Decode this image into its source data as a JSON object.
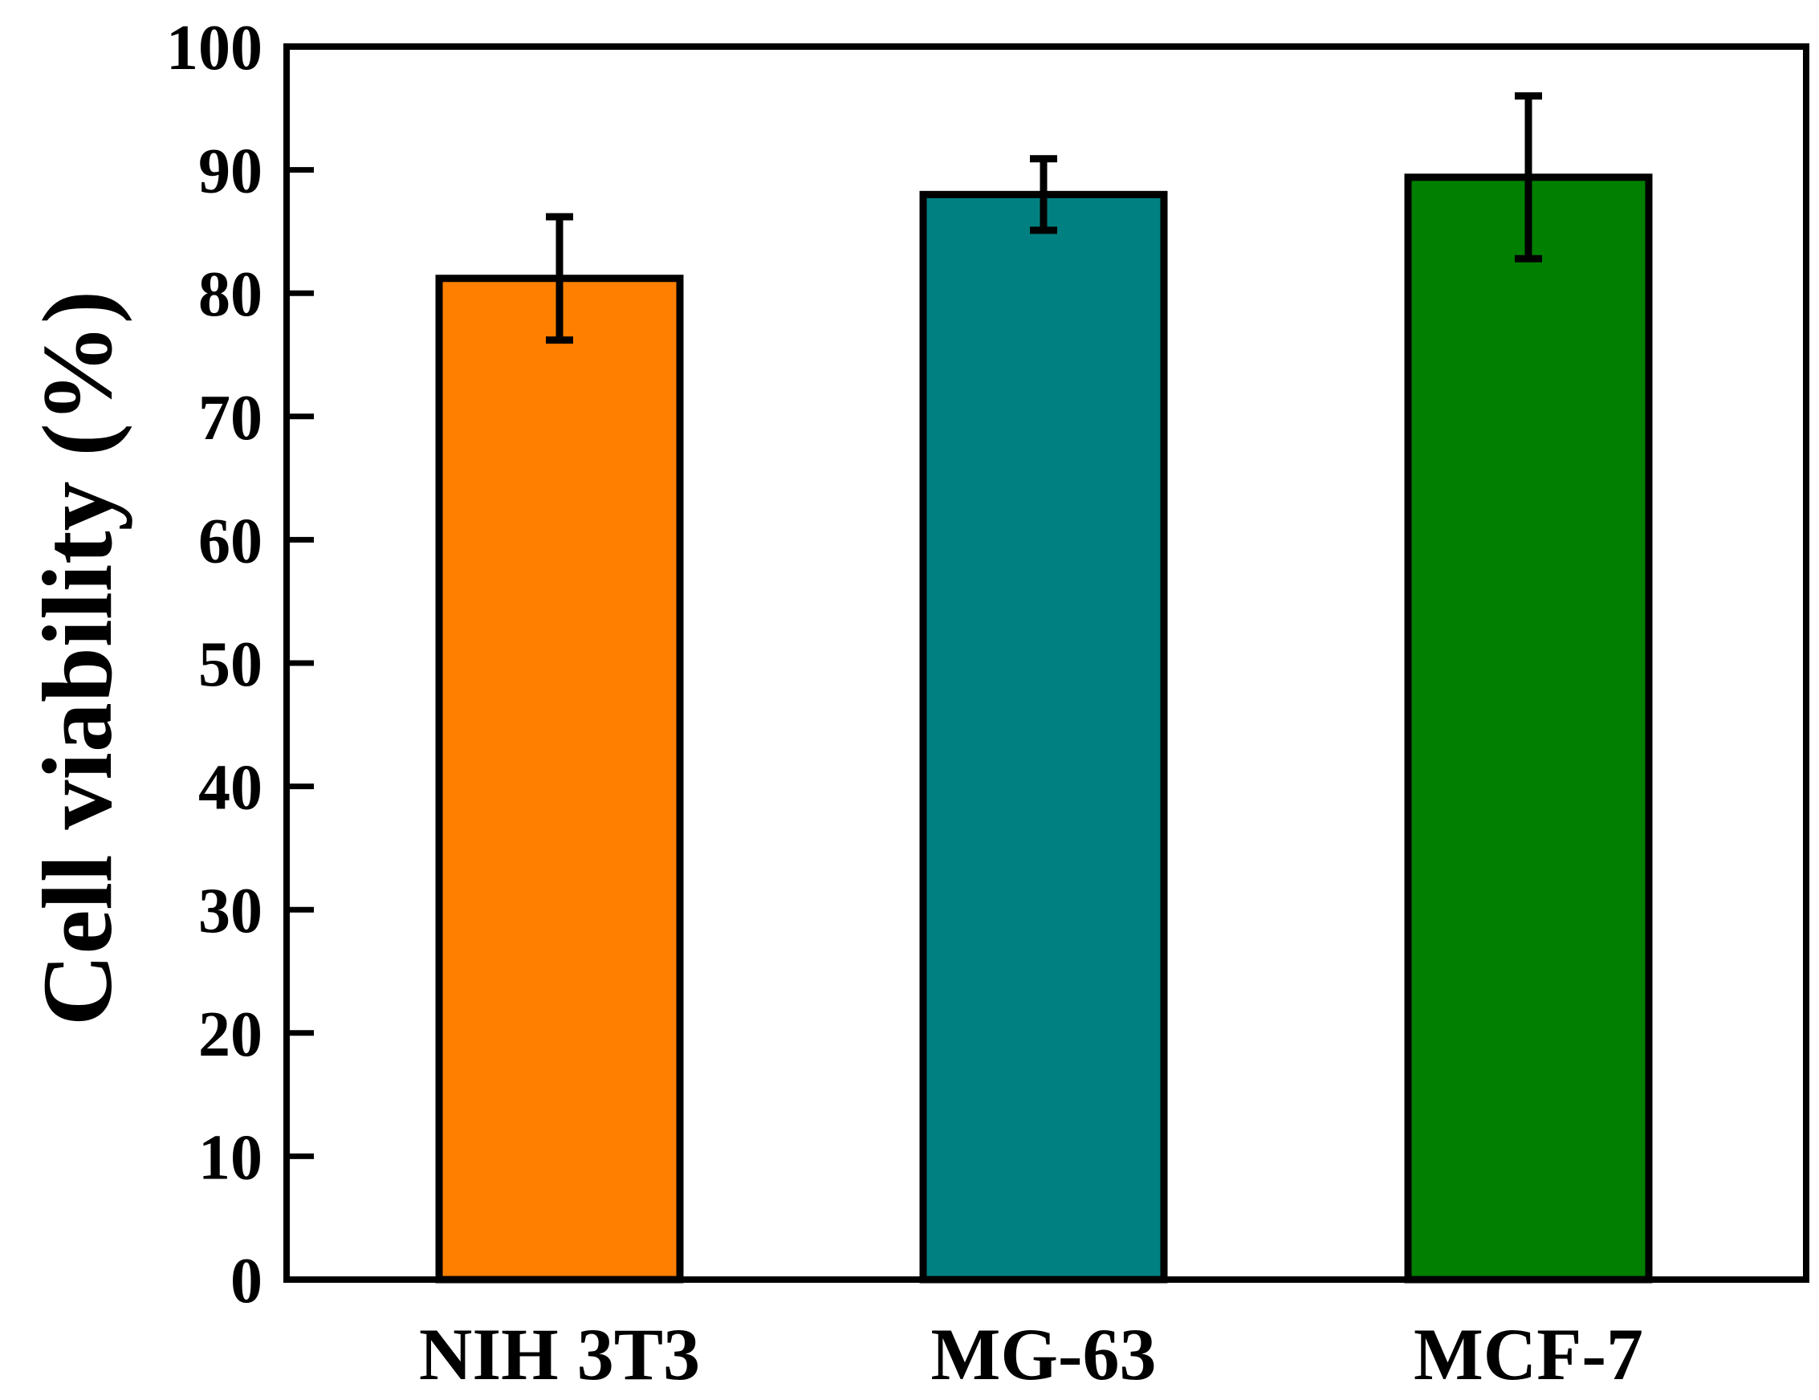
{
  "chart_data": {
    "type": "bar",
    "title": "",
    "xlabel": "",
    "ylabel": "Cell viability (%)",
    "categories": [
      "NIH 3T3",
      "MG-63",
      "MCF-7"
    ],
    "values": [
      81.2,
      88.0,
      89.4
    ],
    "errors": [
      5.0,
      2.9,
      6.6
    ],
    "colors": [
      "#FF8000",
      "#008080",
      "#007F00"
    ],
    "ylim": [
      0,
      100
    ],
    "yticks": [
      0,
      10,
      20,
      30,
      40,
      50,
      60,
      70,
      80,
      90,
      100
    ],
    "grid": false,
    "legend": "none"
  }
}
